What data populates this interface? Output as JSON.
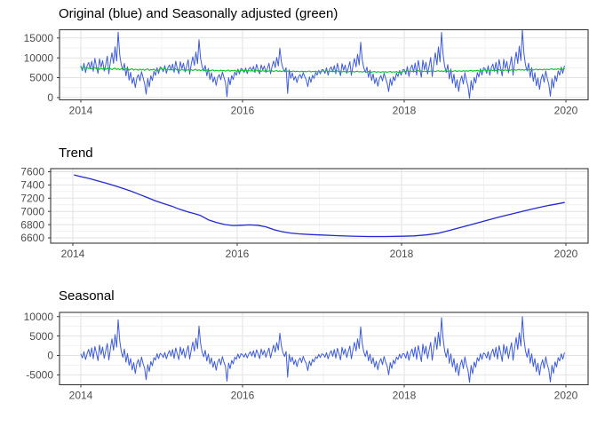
{
  "figure": {
    "background": "#ffffff",
    "description_visible_text_only": true
  },
  "chart_data": [
    {
      "type": "line",
      "title": "Original (blue) and Seasonally adjusted (green)",
      "xlabel": "",
      "ylabel": "",
      "x_ticks": [
        2014,
        2016,
        2018,
        2020
      ],
      "x_minor": [
        2015,
        2017,
        2019
      ],
      "y_ticks": [
        0,
        5000,
        10000,
        15000
      ],
      "y_minor": [
        2500,
        7500,
        12500
      ],
      "xlim": [
        2013.73,
        2020.27
      ],
      "ylim": [
        -580,
        17090
      ],
      "grid": true,
      "legend_position": "none",
      "x_start": 2014.0,
      "x_step": 0.0192308,
      "series": [
        {
          "name": "Original",
          "color_name": "blue",
          "color_hex": "#3D5BDB",
          "derivation": "sum of Seasonally adjusted series and Seasonal component series (original = adjusted + seasonal)",
          "sum_of": [
            "chart_data.0.series.1.values",
            "chart_data.2.series.0.values"
          ]
        },
        {
          "name": "Seasonally adjusted",
          "color_name": "green",
          "color_hex": "#00C71E",
          "values": [
            7620,
            7410,
            7680,
            7350,
            7560,
            7290,
            7500,
            7180,
            7450,
            7580,
            7230,
            7440,
            7100,
            7390,
            7160,
            7420,
            7060,
            7350,
            7120,
            7300,
            7010,
            7280,
            7400,
            7050,
            7280,
            6980,
            7230,
            7350,
            6940,
            7190,
            7290,
            6920,
            7130,
            7260,
            6880,
            7150,
            7050,
            6860,
            7170,
            6920,
            7120,
            6850,
            7080,
            7220,
            6820,
            7060,
            6930,
            7180,
            6800,
            7060,
            6870,
            7140,
            7240,
            7040,
            7280,
            6980,
            7180,
            6930,
            7140,
            6900,
            7120,
            7230,
            6890,
            7100,
            6840,
            7060,
            6880,
            7080,
            6820,
            7020,
            6850,
            7000,
            6790,
            6990,
            7080,
            6790,
            6990,
            6740,
            6950,
            7040,
            6720,
            6910,
            6980,
            6700,
            6870,
            6950,
            6680,
            6880,
            6800,
            6660,
            6900,
            6700,
            6850,
            6640,
            6820,
            6940,
            6620,
            6810,
            6700,
            6900,
            6610,
            6800,
            6670,
            6850,
            6890,
            6710,
            6920,
            6680,
            6860,
            6650,
            6840,
            6620,
            6820,
            6900,
            6620,
            6800,
            6590,
            6770,
            6620,
            6790,
            6570,
            6740,
            6600,
            6720,
            6560,
            6710,
            6790,
            6560,
            6720,
            6520,
            6680,
            6760,
            6500,
            6650,
            6700,
            6490,
            6620,
            6690,
            6480,
            6640,
            6580,
            6470,
            6660,
            6500,
            6620,
            6460,
            6600,
            6690,
            6450,
            6590,
            6500,
            6660,
            6440,
            6590,
            6480,
            6620,
            6720,
            6550,
            6760,
            6530,
            6700,
            6500,
            6680,
            6480,
            6660,
            6740,
            6470,
            6650,
            6440,
            6620,
            6470,
            6640,
            6430,
            6600,
            6450,
            6580,
            6420,
            6570,
            6650,
            6420,
            6580,
            6390,
            6550,
            6620,
            6380,
            6520,
            6570,
            6370,
            6500,
            6560,
            6360,
            6510,
            6460,
            6360,
            6540,
            6390,
            6510,
            6350,
            6490,
            6580,
            6350,
            6480,
            6400,
            6560,
            6350,
            6490,
            6380,
            6520,
            6730,
            6560,
            6780,
            6560,
            6720,
            6540,
            6710,
            6530,
            6700,
            6790,
            6530,
            6710,
            6500,
            6690,
            6540,
            6720,
            6510,
            6690,
            6550,
            6680,
            6530,
            6690,
            6780,
            6550,
            6720,
            6530,
            6700,
            6780,
            6540,
            6690,
            6750,
            6550,
            6690,
            6770,
            6560,
            6730,
            6680,
            6580,
            6770,
            6630,
            6760,
            6610,
            6760,
            6860,
            6630,
            6780,
            6700,
            6870,
            6660,
            6820,
            6700,
            6880,
            6960,
            6790,
            7010,
            6800,
            6950,
            6780,
            6950,
            6780,
            6960,
            7060,
            6800,
            6980,
            6780,
            6970,
            6820,
            7010,
            6810,
            7000,
            6860,
            7000,
            6850,
            7020,
            7110,
            6880,
            7060,
            6870,
            7050,
            7130,
            6900,
            7060,
            7120,
            6920,
            7070,
            7150,
            6940,
            7110,
            7060,
            6960,
            7160,
            7020,
            7150,
            7000,
            7150,
            7250,
            7030,
            7180,
            7090,
            7260,
            7060,
            7220,
            7100,
            7270
          ]
        }
      ]
    },
    {
      "type": "line",
      "title": "Trend",
      "xlabel": "",
      "ylabel": "",
      "x_ticks": [
        2014,
        2016,
        2018,
        2020
      ],
      "x_minor": [
        2015,
        2017,
        2019
      ],
      "y_ticks": [
        6600,
        6800,
        7000,
        7200,
        7400,
        7600
      ],
      "y_minor": [
        6700,
        6900,
        7100,
        7300,
        7500
      ],
      "xlim": [
        2013.73,
        2020.27
      ],
      "ylim": [
        6520,
        7645
      ],
      "grid": true,
      "legend_position": "none",
      "series": [
        {
          "name": "Trend",
          "color_name": "blue",
          "color_hex": "#2228D2",
          "points": [
            [
              2014.02,
              7550
            ],
            [
              2014.12,
              7520
            ],
            [
              2014.2,
              7498
            ],
            [
              2014.3,
              7462
            ],
            [
              2014.4,
              7430
            ],
            [
              2014.5,
              7392
            ],
            [
              2014.6,
              7352
            ],
            [
              2014.7,
              7310
            ],
            [
              2014.8,
              7262
            ],
            [
              2014.9,
              7212
            ],
            [
              2015.0,
              7162
            ],
            [
              2015.1,
              7120
            ],
            [
              2015.2,
              7080
            ],
            [
              2015.3,
              7032
            ],
            [
              2015.4,
              6992
            ],
            [
              2015.5,
              6958
            ],
            [
              2015.55,
              6940
            ],
            [
              2015.65,
              6872
            ],
            [
              2015.75,
              6832
            ],
            [
              2015.85,
              6802
            ],
            [
              2015.95,
              6786
            ],
            [
              2016.05,
              6790
            ],
            [
              2016.15,
              6796
            ],
            [
              2016.25,
              6790
            ],
            [
              2016.35,
              6766
            ],
            [
              2016.45,
              6722
            ],
            [
              2016.55,
              6692
            ],
            [
              2016.65,
              6672
            ],
            [
              2016.75,
              6660
            ],
            [
              2016.9,
              6650
            ],
            [
              2017.0,
              6644
            ],
            [
              2017.2,
              6634
            ],
            [
              2017.4,
              6626
            ],
            [
              2017.6,
              6620
            ],
            [
              2017.8,
              6620
            ],
            [
              2018.0,
              6624
            ],
            [
              2018.15,
              6630
            ],
            [
              2018.3,
              6644
            ],
            [
              2018.45,
              6670
            ],
            [
              2018.6,
              6718
            ],
            [
              2018.75,
              6768
            ],
            [
              2018.9,
              6818
            ],
            [
              2019.05,
              6868
            ],
            [
              2019.2,
              6918
            ],
            [
              2019.35,
              6964
            ],
            [
              2019.5,
              7010
            ],
            [
              2019.65,
              7054
            ],
            [
              2019.8,
              7092
            ],
            [
              2019.92,
              7120
            ],
            [
              2019.98,
              7134
            ]
          ]
        }
      ]
    },
    {
      "type": "line",
      "title": "Seasonal",
      "xlabel": "",
      "ylabel": "",
      "x_ticks": [
        2014,
        2016,
        2018,
        2020
      ],
      "x_minor": [
        2015,
        2017,
        2019
      ],
      "y_ticks": [
        -5000,
        0,
        5000,
        10000
      ],
      "y_minor": [
        -2500,
        2500,
        7500
      ],
      "xlim": [
        2013.73,
        2020.27
      ],
      "ylim": [
        -7530,
        11075
      ],
      "grid": true,
      "legend_position": "none",
      "x_start": 2014.0,
      "x_step": 0.0192308,
      "series": [
        {
          "name": "Seasonal component",
          "color_name": "blue",
          "color_hex": "#3D5BDB",
          "values": [
            310,
            -640,
            950,
            -1060,
            420,
            1570,
            -250,
            1960,
            -850,
            2290,
            640,
            -1350,
            2680,
            260,
            2140,
            -760,
            1130,
            3090,
            -1160,
            1750,
            4260,
            1330,
            5370,
            2150,
            9210,
            3760,
            1040,
            -480,
            1650,
            -1740,
            470,
            -2530,
            -780,
            -3720,
            -1850,
            -4640,
            -2130,
            -1080,
            -2960,
            -380,
            -2040,
            -3310,
            -6230,
            -2370,
            -4150,
            -1560,
            -2640,
            -570,
            -1240,
            460,
            -830,
            550,
            230,
            -530,
            760,
            -870,
            380,
            1280,
            -200,
            1520,
            -780,
            1930,
            460,
            -1100,
            2180,
            210,
            1760,
            -610,
            950,
            2510,
            -940,
            1430,
            3480,
            1100,
            4390,
            1760,
            7560,
            3070,
            870,
            -360,
            1350,
            -1430,
            360,
            -2180,
            -610,
            -3070,
            -1520,
            -3820,
            -1760,
            -870,
            -2420,
            -280,
            -1680,
            -2840,
            -6600,
            -1930,
            -3400,
            -1260,
            -2180,
            -440,
            -1030,
            360,
            -700,
            460,
            190,
            -400,
            530,
            -650,
            340,
            960,
            -150,
            1210,
            -520,
            1470,
            400,
            -830,
            1650,
            150,
            1340,
            -470,
            780,
            1900,
            -640,
            1150,
            2640,
            830,
            3310,
            1400,
            5720,
            2330,
            710,
            -280,
            1020,
            -5600,
            280,
            -1650,
            -400,
            -2300,
            -1150,
            -2870,
            -1340,
            -650,
            -1820,
            -220,
            -1330,
            -2080,
            -3870,
            -1470,
            -2640,
            -960,
            -1700,
            -340,
            -780,
            280,
            -520,
            400,
            260,
            -460,
            740,
            -900,
            420,
            1230,
            -220,
            1540,
            -700,
            1860,
            500,
            -1140,
            2110,
            260,
            1700,
            -540,
            980,
            2430,
            -860,
            1460,
            3390,
            1140,
            4270,
            1790,
            7360,
            3060,
            900,
            -300,
            1300,
            -1420,
            340,
            -2100,
            -540,
            -3020,
            -1460,
            -3700,
            -1780,
            -820,
            -2380,
            -260,
            -1660,
            -2740,
            -4980,
            -1860,
            -3340,
            -1220,
            -2140,
            -420,
            -1060,
            340,
            -740,
            460,
            360,
            -700,
            1030,
            -1260,
            540,
            1660,
            -320,
            2150,
            -1030,
            2560,
            650,
            -1590,
            2930,
            310,
            2370,
            -800,
            1330,
            3390,
            -1260,
            2000,
            4740,
            1550,
            5960,
            2440,
            9700,
            4230,
            1210,
            -470,
            1780,
            -2040,
            430,
            -2930,
            -800,
            -4280,
            -2040,
            -5180,
            -2480,
            -1130,
            -3380,
            -350,
            -2370,
            -3830,
            -6950,
            -2590,
            -4720,
            -1700,
            -3030,
            -570,
            -1470,
            430,
            -1030,
            650,
            340,
            -680,
            990,
            -1190,
            560,
            1640,
            -340,
            2090,
            -990,
            2520,
            670,
            -1530,
            2850,
            330,
            2310,
            -790,
            1320,
            3290,
            -1230,
            1970,
            4620,
            1540,
            5830,
            2420,
            10000,
            4170,
            1190,
            -450,
            1760,
            -1980,
            440,
            -2860,
            -790,
            -4170,
            -1990,
            -5060,
            -2420,
            -1100,
            -3300,
            -330,
            -2300,
            -3740,
            -6820,
            -2530,
            -4620,
            -1650,
            -2970,
            -550,
            -1430,
            440,
            -990,
            660
          ]
        }
      ]
    }
  ],
  "theme": {
    "panel_border_color": "#3a3a3a",
    "grid_major_color": "#e2e2e2",
    "grid_minor_color": "#efefef",
    "tick_color": "#3a3a3a",
    "tick_label_color": "#4d4d4d",
    "title_color": "#000000",
    "background": "#ffffff"
  }
}
